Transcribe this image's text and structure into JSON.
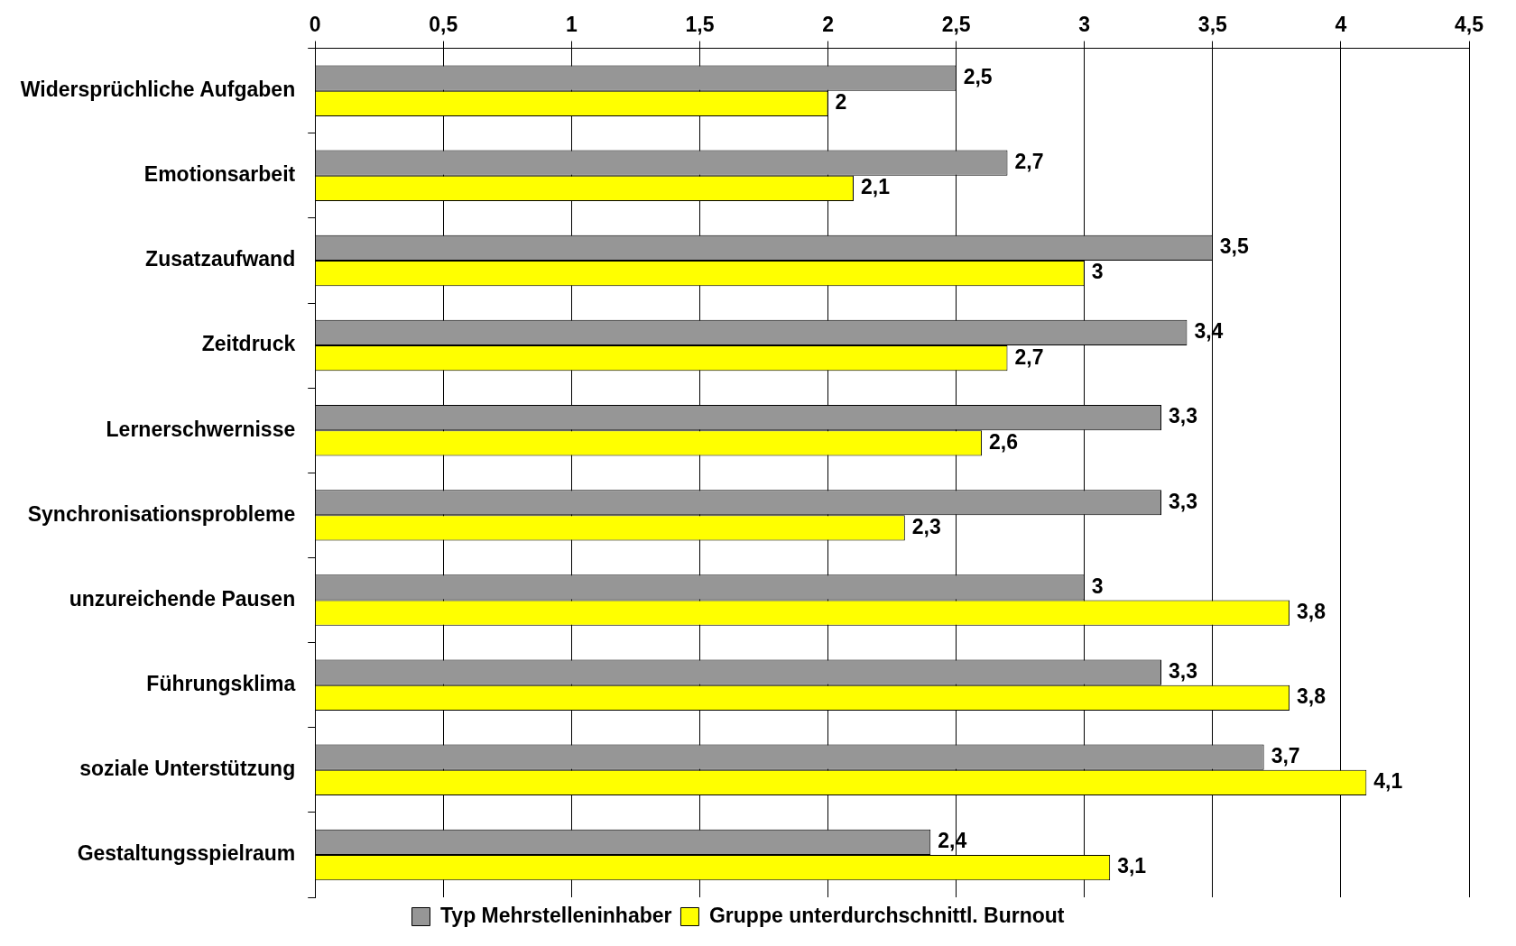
{
  "chart_data": {
    "type": "bar",
    "orientation": "horizontal",
    "categories": [
      "Widersprüchliche Aufgaben",
      "Emotionsarbeit",
      "Zusatzaufwand",
      "Zeitdruck",
      "Lernerschwernisse",
      "Synchronisationsprobleme",
      "unzureichende Pausen",
      "Führungsklima",
      "soziale Unterstützung",
      "Gestaltungsspielraum"
    ],
    "series": [
      {
        "name": "Typ Mehrstelleninhaber",
        "color": "#969696",
        "values": [
          2.5,
          2.7,
          3.5,
          3.4,
          3.3,
          3.3,
          3,
          3.3,
          3.7,
          2.4
        ],
        "value_labels": [
          "2,5",
          "2,7",
          "3,5",
          "3,4",
          "3,3",
          "3,3",
          "3",
          "3,3",
          "3,7",
          "2,4"
        ]
      },
      {
        "name": "Gruppe unterdurchschnittl. Burnout",
        "color": "#ffff00",
        "values": [
          2,
          2.1,
          3,
          2.7,
          2.6,
          2.3,
          3.8,
          3.8,
          4.1,
          3.1
        ],
        "value_labels": [
          "2",
          "2,1",
          "3",
          "2,7",
          "2,6",
          "2,3",
          "3,8",
          "3,8",
          "4,1",
          "3,1"
        ]
      }
    ],
    "xlim": [
      0,
      4.5
    ],
    "xticks": [
      0,
      {
        "value": 0.5,
        "label": "0,5"
      },
      1,
      {
        "value": 1.5,
        "label": "1,5"
      },
      2,
      {
        "value": 2.5,
        "label": "2,5"
      },
      3,
      {
        "value": 3.5,
        "label": "3,5"
      },
      4,
      {
        "value": 4.5,
        "label": "4,5"
      }
    ],
    "grid": "x",
    "legend": "bottom"
  }
}
